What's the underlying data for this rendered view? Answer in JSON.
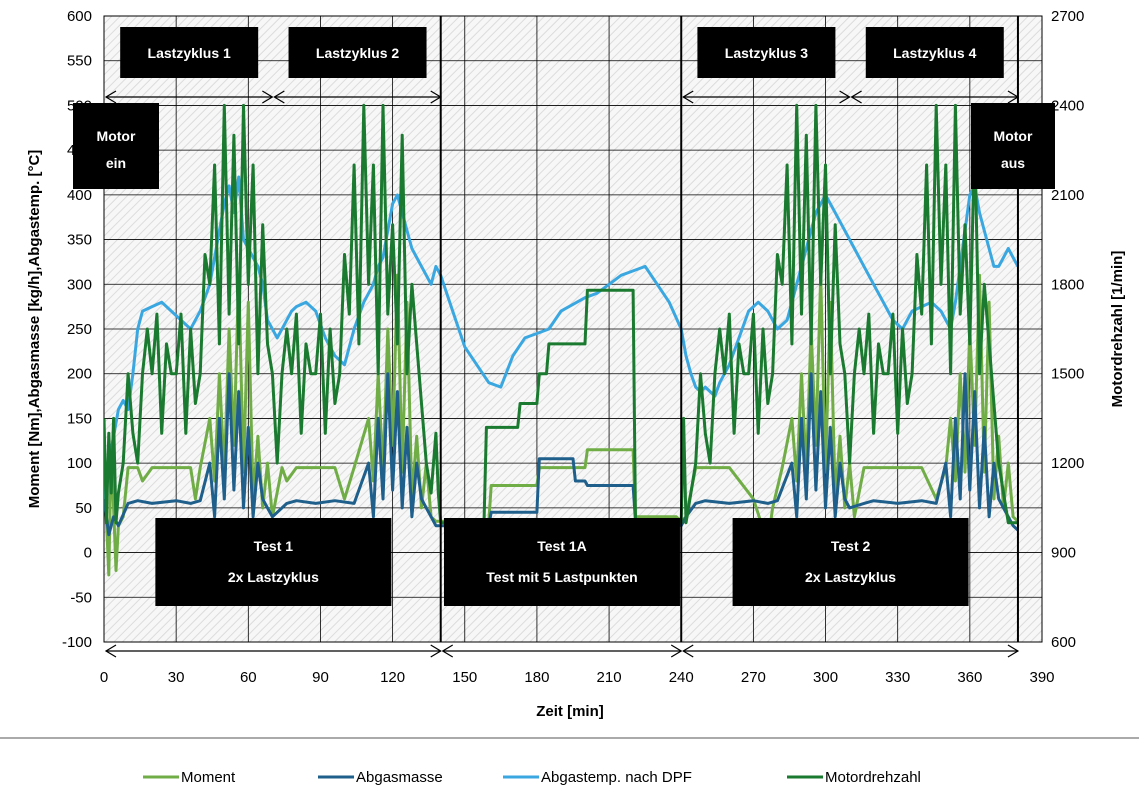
{
  "chart_data": {
    "type": "line",
    "title": "",
    "xlabel": "Zeit [min]",
    "ylabel_left": "Moment [Nm],Abgasmasse  [kg/h],Abgastemp.  [°C]",
    "ylabel_right": "Motordrehzahl [1/min]",
    "xlim": [
      0,
      390
    ],
    "xticks": [
      0,
      30,
      60,
      90,
      120,
      150,
      180,
      210,
      240,
      270,
      300,
      330,
      360,
      390
    ],
    "ylim_left": [
      -100,
      600
    ],
    "yticks_left": [
      -100,
      -50,
      0,
      50,
      100,
      150,
      200,
      250,
      300,
      350,
      400,
      450,
      500,
      550,
      600
    ],
    "ylim_right": [
      600,
      2700
    ],
    "yticks_right": [
      600,
      900,
      1200,
      1500,
      1800,
      2100,
      2400,
      2700
    ],
    "grid": true,
    "legend_position": "bottom",
    "annotations": {
      "phases": [
        {
          "label": "Lastzyklus 1",
          "x_start": 0,
          "x_end": 70
        },
        {
          "label": "Lastzyklus 2",
          "x_start": 70,
          "x_end": 140
        },
        {
          "label": "Lastzyklus 3",
          "x_start": 240,
          "x_end": 310
        },
        {
          "label": "Lastzyklus 4",
          "x_start": 310,
          "x_end": 380
        }
      ],
      "tests": [
        {
          "line1": "Test 1",
          "line2": "2x Lastzyklus",
          "x_start": 0,
          "x_end": 140
        },
        {
          "line1": "Test 1A",
          "line2": "Test mit 5 Lastpunkten",
          "x_start": 140,
          "x_end": 240
        },
        {
          "line1": "Test 2",
          "line2": "2x Lastzyklus",
          "x_start": 240,
          "x_end": 380
        }
      ],
      "motor_ein": [
        "Motor",
        "ein"
      ],
      "motor_aus": [
        "Motor",
        "aus"
      ]
    },
    "series": [
      {
        "name": "Moment",
        "color": "#70ad47",
        "axis": "left",
        "x": [
          0,
          2,
          3,
          5,
          6,
          8,
          10,
          14,
          16,
          20,
          30,
          36,
          38,
          40,
          44,
          46,
          48,
          50,
          52,
          54,
          56,
          58,
          60,
          62,
          64,
          66,
          68,
          70,
          74,
          76,
          80,
          88,
          96,
          100,
          104,
          110,
          112,
          114,
          116,
          118,
          120,
          122,
          124,
          126,
          128,
          130,
          132,
          134,
          136,
          138,
          140,
          141,
          160,
          161,
          180,
          181,
          200,
          201,
          220,
          221,
          238,
          240,
          242,
          246,
          250,
          260,
          270,
          276,
          278,
          282,
          286,
          288,
          290,
          292,
          294,
          296,
          298,
          300,
          302,
          304,
          306,
          308,
          310,
          312,
          316,
          320,
          330,
          340,
          346,
          350,
          352,
          354,
          356,
          358,
          360,
          362,
          364,
          366,
          368,
          370,
          372,
          374,
          376,
          378,
          380
        ],
        "y": [
          100,
          -25,
          120,
          -20,
          30,
          40,
          95,
          95,
          80,
          95,
          95,
          95,
          60,
          95,
          150,
          80,
          200,
          90,
          250,
          120,
          310,
          90,
          280,
          60,
          130,
          50,
          100,
          40,
          95,
          80,
          95,
          95,
          95,
          60,
          95,
          150,
          80,
          200,
          90,
          250,
          120,
          310,
          90,
          280,
          60,
          130,
          50,
          100,
          40,
          35,
          35,
          35,
          35,
          75,
          75,
          95,
          95,
          115,
          115,
          40,
          40,
          35,
          40,
          95,
          95,
          95,
          60,
          10,
          50,
          95,
          150,
          80,
          200,
          90,
          250,
          120,
          310,
          90,
          280,
          60,
          130,
          50,
          100,
          40,
          95,
          95,
          95,
          95,
          60,
          95,
          150,
          80,
          200,
          90,
          250,
          120,
          310,
          90,
          280,
          60,
          130,
          50,
          100,
          40,
          35
        ]
      },
      {
        "name": "Abgasmasse",
        "color": "#1f5f8b",
        "axis": "left",
        "x": [
          0,
          2,
          4,
          6,
          10,
          14,
          20,
          30,
          36,
          40,
          44,
          46,
          48,
          50,
          52,
          54,
          56,
          58,
          60,
          62,
          64,
          66,
          68,
          70,
          76,
          80,
          88,
          96,
          104,
          110,
          112,
          114,
          116,
          118,
          120,
          122,
          124,
          126,
          128,
          130,
          132,
          134,
          136,
          138,
          140,
          141,
          160,
          161,
          180,
          181,
          195,
          196,
          200,
          201,
          220,
          221,
          238,
          240,
          242,
          246,
          250,
          260,
          270,
          276,
          280,
          286,
          288,
          290,
          292,
          294,
          296,
          298,
          300,
          302,
          304,
          306,
          308,
          310,
          316,
          320,
          330,
          340,
          346,
          350,
          352,
          354,
          356,
          358,
          360,
          362,
          364,
          366,
          368,
          370,
          372,
          374,
          376,
          378,
          380
        ],
        "y": [
          60,
          20,
          40,
          30,
          55,
          58,
          55,
          58,
          55,
          58,
          100,
          40,
          150,
          60,
          200,
          70,
          180,
          50,
          140,
          40,
          100,
          60,
          50,
          40,
          55,
          58,
          55,
          58,
          55,
          100,
          40,
          150,
          60,
          200,
          70,
          180,
          50,
          140,
          40,
          100,
          60,
          50,
          40,
          30,
          30,
          30,
          30,
          45,
          45,
          105,
          105,
          80,
          80,
          75,
          75,
          35,
          35,
          30,
          40,
          55,
          58,
          55,
          58,
          55,
          58,
          100,
          40,
          150,
          60,
          200,
          70,
          180,
          50,
          140,
          40,
          100,
          60,
          50,
          55,
          58,
          55,
          58,
          55,
          100,
          40,
          150,
          60,
          200,
          70,
          180,
          50,
          140,
          40,
          100,
          60,
          50,
          40,
          30,
          25
        ]
      },
      {
        "name": "Abgastemp. nach DPF",
        "color": "#3ba7e0",
        "axis": "left",
        "x": [
          0,
          2,
          4,
          6,
          8,
          10,
          12,
          14,
          16,
          20,
          24,
          28,
          32,
          36,
          40,
          44,
          46,
          48,
          50,
          52,
          54,
          56,
          58,
          60,
          62,
          64,
          66,
          68,
          70,
          72,
          76,
          78,
          80,
          84,
          88,
          92,
          96,
          100,
          104,
          108,
          112,
          114,
          116,
          118,
          120,
          122,
          124,
          126,
          128,
          130,
          132,
          134,
          136,
          138,
          140,
          145,
          150,
          155,
          160,
          165,
          170,
          175,
          180,
          185,
          190,
          200,
          205,
          210,
          215,
          220,
          225,
          230,
          235,
          240,
          242,
          244,
          246,
          248,
          250,
          252,
          254,
          256,
          258,
          260,
          264,
          268,
          272,
          276,
          280,
          284,
          288,
          292,
          296,
          300,
          304,
          308,
          312,
          316,
          320,
          324,
          328,
          332,
          336,
          340,
          344,
          348,
          350,
          352,
          354,
          356,
          358,
          360,
          362,
          364,
          366,
          368,
          370,
          372,
          374,
          376,
          378,
          380
        ],
        "y": [
          60,
          100,
          130,
          160,
          170,
          160,
          200,
          250,
          270,
          275,
          280,
          270,
          260,
          250,
          270,
          300,
          330,
          360,
          390,
          410,
          380,
          420,
          350,
          340,
          330,
          320,
          300,
          260,
          250,
          240,
          260,
          270,
          275,
          280,
          270,
          240,
          220,
          210,
          250,
          280,
          300,
          320,
          330,
          360,
          390,
          400,
          380,
          360,
          340,
          330,
          320,
          310,
          300,
          320,
          310,
          270,
          230,
          210,
          190,
          185,
          220,
          240,
          245,
          250,
          270,
          285,
          290,
          300,
          310,
          315,
          320,
          300,
          280,
          250,
          220,
          200,
          185,
          180,
          185,
          180,
          175,
          190,
          200,
          210,
          240,
          270,
          280,
          270,
          250,
          260,
          300,
          340,
          380,
          400,
          380,
          360,
          340,
          320,
          300,
          280,
          260,
          250,
          270,
          275,
          280,
          270,
          260,
          250,
          280,
          320,
          360,
          400,
          410,
          380,
          360,
          340,
          320,
          320,
          330,
          340,
          330,
          320
        ]
      },
      {
        "name": "Motordrehzahl",
        "color": "#1a7a2f",
        "axis": "right",
        "x": [
          0,
          1,
          2,
          3,
          4,
          5,
          6,
          8,
          10,
          12,
          14,
          16,
          18,
          20,
          22,
          24,
          26,
          28,
          30,
          32,
          34,
          36,
          38,
          40,
          42,
          44,
          46,
          48,
          50,
          52,
          54,
          56,
          58,
          60,
          62,
          64,
          66,
          68,
          70,
          72,
          74,
          76,
          78,
          80,
          82,
          84,
          86,
          88,
          90,
          92,
          94,
          96,
          98,
          100,
          102,
          104,
          106,
          108,
          110,
          112,
          114,
          116,
          118,
          120,
          122,
          124,
          126,
          128,
          130,
          132,
          134,
          136,
          138,
          139,
          140,
          142,
          144,
          146,
          150,
          158,
          159,
          172,
          173,
          180,
          181,
          184,
          185,
          200,
          201,
          220,
          221,
          230,
          240,
          241,
          242,
          244,
          246,
          248,
          250,
          252,
          254,
          256,
          258,
          260,
          262,
          264,
          266,
          268,
          270,
          272,
          274,
          276,
          278,
          280,
          282,
          284,
          286,
          288,
          290,
          292,
          294,
          296,
          298,
          300,
          302,
          304,
          306,
          308,
          310,
          312,
          314,
          316,
          318,
          320,
          322,
          324,
          326,
          328,
          330,
          332,
          334,
          336,
          338,
          340,
          342,
          344,
          346,
          348,
          350,
          352,
          354,
          356,
          358,
          360,
          362,
          364,
          366,
          368,
          370,
          372,
          374,
          376,
          378,
          380
        ],
        "y": [
          1350,
          1000,
          1300,
          1100,
          1350,
          1000,
          1100,
          1200,
          1500,
          1300,
          1200,
          1500,
          1650,
          1500,
          1700,
          1300,
          1600,
          1500,
          1500,
          1700,
          1300,
          1650,
          1400,
          1500,
          1900,
          1800,
          2200,
          1600,
          2400,
          1700,
          2300,
          1600,
          2400,
          1800,
          2200,
          1500,
          2000,
          1600,
          1500,
          1200,
          1500,
          1650,
          1500,
          1700,
          1300,
          1600,
          1500,
          1500,
          1700,
          1300,
          1650,
          1400,
          1500,
          1900,
          1700,
          2200,
          1600,
          2400,
          1800,
          2200,
          1500,
          2400,
          1700,
          2000,
          1600,
          2300,
          1500,
          1800,
          1600,
          1400,
          1200,
          1100,
          1300,
          1100,
          1000,
          1000,
          1000,
          1000,
          1000,
          1000,
          1320,
          1320,
          1400,
          1400,
          1500,
          1500,
          1600,
          1600,
          1780,
          1780,
          1000,
          1000,
          1000,
          1350,
          1000,
          1100,
          1200,
          1500,
          1300,
          1200,
          1500,
          1650,
          1500,
          1700,
          1300,
          1600,
          1500,
          1500,
          1700,
          1300,
          1650,
          1400,
          1500,
          1900,
          1800,
          2200,
          1600,
          2400,
          1700,
          2300,
          1600,
          2400,
          1800,
          2200,
          1500,
          2000,
          1600,
          1500,
          1200,
          1500,
          1650,
          1500,
          1700,
          1300,
          1600,
          1500,
          1500,
          1700,
          1300,
          1650,
          1400,
          1500,
          1900,
          1700,
          2200,
          1600,
          2400,
          1800,
          2200,
          1500,
          2400,
          1700,
          2000,
          1600,
          2300,
          1500,
          1800,
          1600,
          1400,
          1200,
          1100,
          1000,
          1000,
          1000
        ]
      }
    ]
  }
}
